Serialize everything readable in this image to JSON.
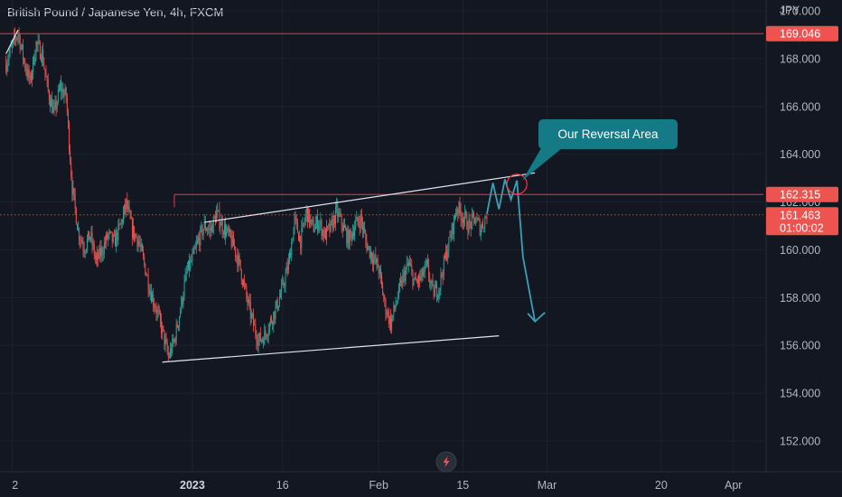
{
  "header": {
    "title": "British Pound / Japanese Yen, 4h, FXCM",
    "currency": "JPY"
  },
  "colors": {
    "background": "#131722",
    "bullish": "#26a69a",
    "bearish": "#ef5350",
    "level_line": "#f23645",
    "trendline": "#e0e3eb",
    "projection": "#3d9fb5",
    "callout": "#137a86"
  },
  "chart_data": {
    "type": "candlestick",
    "symbol": "GBPJPY",
    "timeframe": "4h",
    "ylim": [
      151.5,
      170.5
    ],
    "y_ticks": [
      {
        "value": 170,
        "label": "170.000"
      },
      {
        "value": 168,
        "label": "168.000"
      },
      {
        "value": 166,
        "label": "166.000"
      },
      {
        "value": 164,
        "label": "164.000"
      },
      {
        "value": 162,
        "label": "162.000"
      },
      {
        "value": 160,
        "label": "160.000"
      },
      {
        "value": 158,
        "label": "158.000"
      },
      {
        "value": 156,
        "label": "156.000"
      },
      {
        "value": 154,
        "label": "154.000"
      },
      {
        "value": 152,
        "label": "152.000"
      }
    ],
    "x_ticks": [
      {
        "date": "2022-12-02",
        "label": "2",
        "strong": false
      },
      {
        "date": "2023-01-01",
        "label": "2023",
        "strong": true
      },
      {
        "date": "2023-01-16",
        "label": "16",
        "strong": false
      },
      {
        "date": "2023-02-01",
        "label": "Feb",
        "strong": false
      },
      {
        "date": "2023-02-15",
        "label": "15",
        "strong": false
      },
      {
        "date": "2023-03-01",
        "label": "Mar",
        "strong": false
      },
      {
        "date": "2023-03-20",
        "label": "20",
        "strong": false
      },
      {
        "date": "2023-04-01",
        "label": "Apr",
        "strong": false
      }
    ],
    "price_path": [
      [
        "2022-12-01",
        167.8
      ],
      [
        "2022-12-02",
        168.5
      ],
      [
        "2022-12-03",
        169.1
      ],
      [
        "2022-12-04",
        167.9
      ],
      [
        "2022-12-05",
        167.0
      ],
      [
        "2022-12-06",
        168.6
      ],
      [
        "2022-12-07",
        168.2
      ],
      [
        "2022-12-08",
        166.6
      ],
      [
        "2022-12-09",
        165.7
      ],
      [
        "2022-12-10",
        166.8
      ],
      [
        "2022-12-11",
        166.4
      ],
      [
        "2022-12-12",
        162.6
      ],
      [
        "2022-12-13",
        160.8
      ],
      [
        "2022-12-14",
        160.1
      ],
      [
        "2022-12-15",
        160.6
      ],
      [
        "2022-12-16",
        159.5
      ],
      [
        "2022-12-17",
        160.0
      ],
      [
        "2022-12-18",
        160.6
      ],
      [
        "2022-12-19",
        160.3
      ],
      [
        "2022-12-20",
        161.0
      ],
      [
        "2022-12-21",
        161.9
      ],
      [
        "2022-12-22",
        160.8
      ],
      [
        "2022-12-23",
        160.4
      ],
      [
        "2022-12-24",
        159.4
      ],
      [
        "2022-12-25",
        158.3
      ],
      [
        "2022-12-26",
        157.5
      ],
      [
        "2022-12-27",
        156.6
      ],
      [
        "2022-12-28",
        155.5
      ],
      [
        "2022-12-29",
        156.2
      ],
      [
        "2022-12-30",
        157.5
      ],
      [
        "2022-12-31",
        159.0
      ],
      [
        "2023-01-01",
        159.6
      ],
      [
        "2023-01-02",
        160.4
      ],
      [
        "2023-01-03",
        161.0
      ],
      [
        "2023-01-04",
        160.8
      ],
      [
        "2023-01-05",
        161.5
      ],
      [
        "2023-01-06",
        161.0
      ],
      [
        "2023-01-07",
        160.6
      ],
      [
        "2023-01-08",
        160.1
      ],
      [
        "2023-01-09",
        159.2
      ],
      [
        "2023-01-10",
        158.0
      ],
      [
        "2023-01-11",
        157.0
      ],
      [
        "2023-01-12",
        156.2
      ],
      [
        "2023-01-13",
        156.4
      ],
      [
        "2023-01-14",
        157.0
      ],
      [
        "2023-01-15",
        157.6
      ],
      [
        "2023-01-16",
        158.4
      ],
      [
        "2023-01-17",
        159.4
      ],
      [
        "2023-01-18",
        161.2
      ],
      [
        "2023-01-19",
        160.4
      ],
      [
        "2023-01-20",
        161.6
      ],
      [
        "2023-01-21",
        160.9
      ],
      [
        "2023-01-22",
        161.2
      ],
      [
        "2023-01-23",
        160.6
      ],
      [
        "2023-01-24",
        160.9
      ],
      [
        "2023-01-25",
        161.6
      ],
      [
        "2023-01-26",
        161.0
      ],
      [
        "2023-01-27",
        160.4
      ],
      [
        "2023-01-28",
        161.0
      ],
      [
        "2023-01-29",
        161.3
      ],
      [
        "2023-01-30",
        160.2
      ],
      [
        "2023-01-31",
        159.7
      ],
      [
        "2023-02-01",
        159.2
      ],
      [
        "2023-02-02",
        157.7
      ],
      [
        "2023-02-03",
        156.9
      ],
      [
        "2023-02-04",
        157.9
      ],
      [
        "2023-02-05",
        158.8
      ],
      [
        "2023-02-06",
        159.4
      ],
      [
        "2023-02-07",
        158.6
      ],
      [
        "2023-02-08",
        158.8
      ],
      [
        "2023-02-09",
        159.3
      ],
      [
        "2023-02-10",
        158.2
      ],
      [
        "2023-02-11",
        158.4
      ],
      [
        "2023-02-12",
        159.6
      ],
      [
        "2023-02-13",
        160.6
      ],
      [
        "2023-02-14",
        161.8
      ],
      [
        "2023-02-15",
        161.4
      ],
      [
        "2023-02-16",
        161.0
      ],
      [
        "2023-02-17",
        161.3
      ],
      [
        "2023-02-18",
        160.9
      ],
      [
        "2023-02-19",
        161.5
      ]
    ],
    "horizontal_levels": [
      {
        "price": 169.046,
        "label": "169.046",
        "style": "solid",
        "from_date": "2022-11-30"
      },
      {
        "price": 162.315,
        "label": "162.315",
        "style": "solid",
        "from_date": "2022-12-29"
      },
      {
        "price": 161.463,
        "label": "161.463",
        "style": "dotted",
        "from_date": "2022-11-30"
      }
    ],
    "current_price": {
      "price": 161.463,
      "label": "161.463",
      "countdown": "01:00:02"
    },
    "trendlines": [
      {
        "name": "channel-top",
        "from": [
          "2023-01-03",
          161.15
        ],
        "to": [
          "2023-02-27",
          163.22
        ]
      },
      {
        "name": "channel-bottom",
        "from": [
          "2022-12-27",
          155.3
        ],
        "to": [
          "2023-02-21",
          156.4
        ]
      }
    ],
    "projection_path": [
      [
        "2023-02-19",
        161.5
      ],
      [
        "2023-02-20",
        162.8
      ],
      [
        "2023-02-21",
        161.7
      ],
      [
        "2023-02-22",
        162.95
      ],
      [
        "2023-02-23",
        162.1
      ],
      [
        "2023-02-24",
        162.9
      ],
      [
        "2023-02-25",
        159.7
      ],
      [
        "2023-02-27",
        157.0
      ]
    ],
    "reversal_circle": {
      "center": [
        "2023-02-24",
        162.75
      ]
    },
    "annotations": [
      {
        "text": "Our Reversal Area",
        "anchor": [
          "2023-02-24",
          162.75
        ]
      }
    ]
  }
}
